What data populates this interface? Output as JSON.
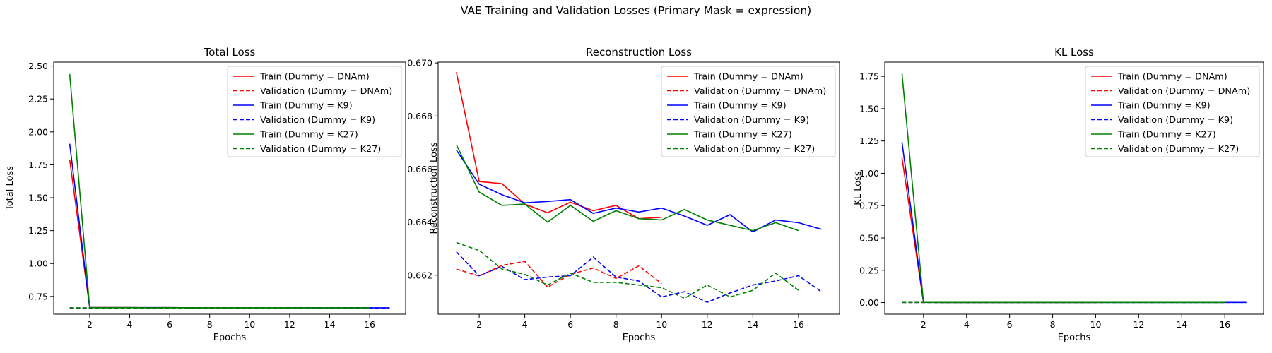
{
  "figure": {
    "suptitle": "VAE Training and Validation Losses (Primary Mask = expression)"
  },
  "chart_data": [
    {
      "type": "line",
      "title": "Total Loss",
      "xlabel": "Epochs",
      "ylabel": "Total Loss",
      "xlim": [
        0.2,
        17.8
      ],
      "ylim": [
        0.615,
        2.53
      ],
      "xticks": [
        2,
        4,
        6,
        8,
        10,
        12,
        14,
        16
      ],
      "yticks": [
        0.75,
        1.0,
        1.25,
        1.5,
        1.75,
        2.0,
        2.25,
        2.5
      ],
      "ytick_labels": [
        "0.75",
        "1.00",
        "1.25",
        "1.50",
        "1.75",
        "2.00",
        "2.25",
        "2.50"
      ],
      "legend_position": "top-right",
      "series": [
        {
          "name": "Train (Dummy = DNAm)",
          "color": "#ff0000",
          "dash": false,
          "x": [
            1,
            2,
            3,
            4,
            5,
            6,
            7,
            8,
            9,
            10
          ],
          "y": [
            1.79,
            0.6655,
            0.6654,
            0.6647,
            0.6643,
            0.6647,
            0.6644,
            0.6646,
            0.6641,
            0.6642
          ]
        },
        {
          "name": "Validation (Dummy = DNAm)",
          "color": "#ff0000",
          "dash": true,
          "x": [
            1,
            2,
            3,
            4,
            5,
            6,
            7,
            8,
            9,
            10
          ],
          "y": [
            0.6622,
            0.662,
            0.6624,
            0.6625,
            0.6615,
            0.662,
            0.6622,
            0.6619,
            0.6623,
            0.6617
          ]
        },
        {
          "name": "Train (Dummy = K9)",
          "color": "#0000ff",
          "dash": false,
          "x": [
            1,
            2,
            3,
            4,
            5,
            6,
            7,
            8,
            9,
            10,
            11,
            12,
            13,
            14,
            15,
            16,
            17
          ],
          "y": [
            1.91,
            0.6654,
            0.665,
            0.6647,
            0.6648,
            0.6648,
            0.6643,
            0.6645,
            0.6644,
            0.6645,
            0.6642,
            0.6639,
            0.6643,
            0.6636,
            0.6641,
            0.664,
            0.6638
          ]
        },
        {
          "name": "Validation (Dummy = K9)",
          "color": "#0000ff",
          "dash": true,
          "x": [
            1,
            2,
            3,
            4,
            5,
            6,
            7,
            8,
            9,
            10,
            11,
            12,
            13,
            14,
            15,
            16,
            17
          ],
          "y": [
            0.6629,
            0.662,
            0.6623,
            0.6618,
            0.6619,
            0.662,
            0.6627,
            0.6619,
            0.6618,
            0.6612,
            0.6614,
            0.661,
            0.6613,
            0.6617,
            0.6618,
            0.662,
            0.6614
          ]
        },
        {
          "name": "Train (Dummy = K27)",
          "color": "#008000",
          "dash": false,
          "x": [
            1,
            2,
            3,
            4,
            5,
            6,
            7,
            8,
            9,
            10,
            11,
            12,
            13,
            14,
            15,
            16
          ],
          "y": [
            2.44,
            0.6651,
            0.6646,
            0.6647,
            0.664,
            0.6646,
            0.664,
            0.6644,
            0.6641,
            0.6641,
            0.6645,
            0.6641,
            0.6639,
            0.6637,
            0.664,
            0.6637
          ]
        },
        {
          "name": "Validation (Dummy = K27)",
          "color": "#008000",
          "dash": true,
          "x": [
            1,
            2,
            3,
            4,
            5,
            6,
            7,
            8,
            9,
            10,
            11,
            12,
            13,
            14,
            15,
            16
          ],
          "y": [
            0.6632,
            0.6629,
            0.6622,
            0.662,
            0.6616,
            0.6621,
            0.6617,
            0.6617,
            0.6616,
            0.6615,
            0.6611,
            0.6616,
            0.6612,
            0.6614,
            0.6621,
            0.6614
          ]
        }
      ]
    },
    {
      "type": "line",
      "title": "Reconstruction Loss",
      "xlabel": "Epochs",
      "ylabel": "Reconstruction Loss",
      "xlim": [
        0.2,
        17.8
      ],
      "ylim": [
        0.66053,
        0.67003
      ],
      "xticks": [
        2,
        4,
        6,
        8,
        10,
        12,
        14,
        16
      ],
      "yticks": [
        0.662,
        0.664,
        0.666,
        0.668,
        0.67
      ],
      "ytick_labels": [
        "0.662",
        "0.664",
        "0.666",
        "0.668",
        "0.670"
      ],
      "legend_position": "top-right",
      "series": [
        {
          "name": "Train (Dummy = DNAm)",
          "color": "#ff0000",
          "dash": false,
          "x": [
            1,
            2,
            3,
            4,
            5,
            6,
            7,
            8,
            9,
            10
          ],
          "y": [
            0.66965,
            0.66553,
            0.66545,
            0.66468,
            0.66435,
            0.66475,
            0.66443,
            0.66463,
            0.66413,
            0.66418
          ]
        },
        {
          "name": "Validation (Dummy = DNAm)",
          "color": "#ff0000",
          "dash": true,
          "x": [
            1,
            2,
            3,
            4,
            5,
            6,
            7,
            8,
            9,
            10
          ],
          "y": [
            0.66223,
            0.66197,
            0.66237,
            0.66252,
            0.66155,
            0.66203,
            0.66227,
            0.66188,
            0.66235,
            0.66168
          ]
        },
        {
          "name": "Train (Dummy = K9)",
          "color": "#0000ff",
          "dash": false,
          "x": [
            1,
            2,
            3,
            4,
            5,
            6,
            7,
            8,
            9,
            10,
            11,
            12,
            13,
            14,
            15,
            16,
            17
          ],
          "y": [
            0.66672,
            0.66543,
            0.66503,
            0.66473,
            0.66478,
            0.66485,
            0.66433,
            0.66453,
            0.66438,
            0.66453,
            0.66423,
            0.66388,
            0.66428,
            0.66363,
            0.66408,
            0.66398,
            0.66373
          ]
        },
        {
          "name": "Validation (Dummy = K9)",
          "color": "#0000ff",
          "dash": true,
          "x": [
            1,
            2,
            3,
            4,
            5,
            6,
            7,
            8,
            9,
            10,
            11,
            12,
            13,
            14,
            15,
            16,
            17
          ],
          "y": [
            0.66288,
            0.66198,
            0.66233,
            0.66183,
            0.66193,
            0.66198,
            0.66268,
            0.66193,
            0.66178,
            0.66118,
            0.66138,
            0.66098,
            0.66133,
            0.66163,
            0.66178,
            0.66198,
            0.66138
          ]
        },
        {
          "name": "Train (Dummy = K27)",
          "color": "#008000",
          "dash": false,
          "x": [
            1,
            2,
            3,
            4,
            5,
            6,
            7,
            8,
            9,
            10,
            11,
            12,
            13,
            14,
            15,
            16
          ],
          "y": [
            0.66692,
            0.66513,
            0.66463,
            0.66468,
            0.664,
            0.66463,
            0.66403,
            0.66443,
            0.66413,
            0.66408,
            0.66448,
            0.66408,
            0.66388,
            0.66368,
            0.66398,
            0.66368
          ]
        },
        {
          "name": "Validation (Dummy = K27)",
          "color": "#008000",
          "dash": true,
          "x": [
            1,
            2,
            3,
            4,
            5,
            6,
            7,
            8,
            9,
            10,
            11,
            12,
            13,
            14,
            15,
            16
          ],
          "y": [
            0.66323,
            0.66293,
            0.66223,
            0.66203,
            0.66163,
            0.66208,
            0.66173,
            0.66173,
            0.66163,
            0.66153,
            0.66113,
            0.66163,
            0.66118,
            0.66143,
            0.66208,
            0.66143
          ]
        }
      ]
    },
    {
      "type": "line",
      "title": "KL Loss",
      "xlabel": "Epochs",
      "ylabel": "KL Loss",
      "xlim": [
        0.2,
        17.8
      ],
      "ylim": [
        -0.09,
        1.86
      ],
      "xticks": [
        2,
        4,
        6,
        8,
        10,
        12,
        14,
        16
      ],
      "yticks": [
        0.0,
        0.25,
        0.5,
        0.75,
        1.0,
        1.25,
        1.5,
        1.75
      ],
      "ytick_labels": [
        "0.00",
        "0.25",
        "0.50",
        "0.75",
        "1.00",
        "1.25",
        "1.50",
        "1.75"
      ],
      "legend_position": "top-right",
      "series": [
        {
          "name": "Train (Dummy = DNAm)",
          "color": "#ff0000",
          "dash": false,
          "x": [
            1,
            2,
            3,
            4,
            5,
            6,
            7,
            8,
            9,
            10
          ],
          "y": [
            1.12,
            0.002,
            0.001,
            0.001,
            0.001,
            0.001,
            0.001,
            0.001,
            0.001,
            0.001
          ]
        },
        {
          "name": "Validation (Dummy = DNAm)",
          "color": "#ff0000",
          "dash": true,
          "x": [
            1,
            2,
            3,
            4,
            5,
            6,
            7,
            8,
            9,
            10
          ],
          "y": [
            0.001,
            0.001,
            0.001,
            0.001,
            0.001,
            0.001,
            0.001,
            0.001,
            0.001,
            0.001
          ]
        },
        {
          "name": "Train (Dummy = K9)",
          "color": "#0000ff",
          "dash": false,
          "x": [
            1,
            2,
            3,
            4,
            5,
            6,
            7,
            8,
            9,
            10,
            11,
            12,
            13,
            14,
            15,
            16,
            17
          ],
          "y": [
            1.24,
            0.002,
            0.001,
            0.001,
            0.001,
            0.001,
            0.001,
            0.001,
            0.001,
            0.001,
            0.001,
            0.001,
            0.001,
            0.001,
            0.001,
            0.001,
            0.001
          ]
        },
        {
          "name": "Validation (Dummy = K9)",
          "color": "#0000ff",
          "dash": true,
          "x": [
            1,
            2,
            3,
            4,
            5,
            6,
            7,
            8,
            9,
            10,
            11,
            12,
            13,
            14,
            15,
            16,
            17
          ],
          "y": [
            0.001,
            0.001,
            0.001,
            0.001,
            0.001,
            0.001,
            0.001,
            0.001,
            0.001,
            0.001,
            0.001,
            0.001,
            0.001,
            0.001,
            0.001,
            0.001,
            0.001
          ]
        },
        {
          "name": "Train (Dummy = K27)",
          "color": "#008000",
          "dash": false,
          "x": [
            1,
            2,
            3,
            4,
            5,
            6,
            7,
            8,
            9,
            10,
            11,
            12,
            13,
            14,
            15,
            16
          ],
          "y": [
            1.77,
            0.002,
            0.001,
            0.001,
            0.001,
            0.001,
            0.001,
            0.001,
            0.001,
            0.001,
            0.001,
            0.001,
            0.001,
            0.001,
            0.001,
            0.001
          ]
        },
        {
          "name": "Validation (Dummy = K27)",
          "color": "#008000",
          "dash": true,
          "x": [
            1,
            2,
            3,
            4,
            5,
            6,
            7,
            8,
            9,
            10,
            11,
            12,
            13,
            14,
            15,
            16
          ],
          "y": [
            0.001,
            0.001,
            0.001,
            0.001,
            0.001,
            0.001,
            0.001,
            0.001,
            0.001,
            0.001,
            0.001,
            0.001,
            0.001,
            0.001,
            0.001,
            0.001
          ]
        }
      ]
    }
  ]
}
